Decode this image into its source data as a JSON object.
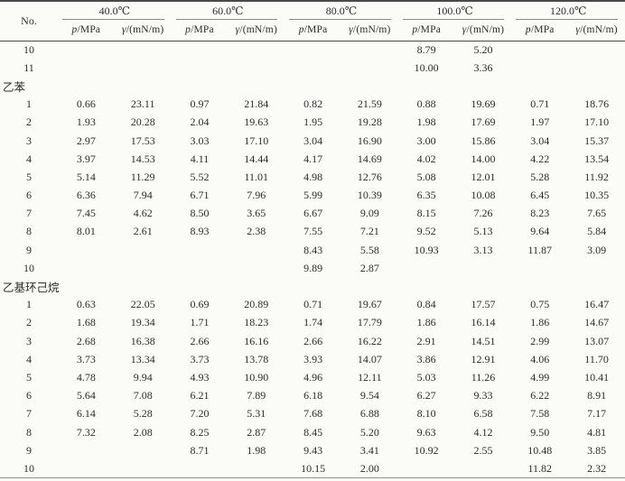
{
  "colors": {
    "page_background": "#fbfbf8",
    "text": "#2b2b2b",
    "rule_strong": "#4a4a4a",
    "rule_light": "#8a8a8a"
  },
  "table": {
    "corner_header": "No.",
    "temp_groups": [
      "40.0℃",
      "60.0℃",
      "80.0℃",
      "100.0℃",
      "120.0℃"
    ],
    "sub_headers": {
      "pressure": {
        "symbol": "p",
        "unit": "/MPa"
      },
      "tension": {
        "symbol": "γ",
        "unit": "/(mN/m)"
      }
    },
    "rows": [
      {
        "type": "data",
        "no": "10",
        "values": [
          "",
          "",
          "",
          "",
          "",
          "",
          "8.79",
          "5.20",
          "",
          ""
        ]
      },
      {
        "type": "data",
        "no": "11",
        "values": [
          "",
          "",
          "",
          "",
          "",
          "",
          "10.00",
          "3.36",
          "",
          ""
        ]
      },
      {
        "type": "section",
        "label": "乙苯"
      },
      {
        "type": "data",
        "no": "1",
        "values": [
          "0.66",
          "23.11",
          "0.97",
          "21.84",
          "0.82",
          "21.59",
          "0.88",
          "19.69",
          "0.71",
          "18.76"
        ]
      },
      {
        "type": "data",
        "no": "2",
        "values": [
          "1.93",
          "20.28",
          "2.04",
          "19.63",
          "1.95",
          "19.28",
          "1.98",
          "17.69",
          "1.97",
          "17.10"
        ]
      },
      {
        "type": "data",
        "no": "3",
        "values": [
          "2.97",
          "17.53",
          "3.03",
          "17.10",
          "3.04",
          "16.90",
          "3.00",
          "15.86",
          "3.04",
          "15.37"
        ]
      },
      {
        "type": "data",
        "no": "4",
        "values": [
          "3.97",
          "14.53",
          "4.11",
          "14.44",
          "4.17",
          "14.69",
          "4.02",
          "14.00",
          "4.22",
          "13.54"
        ]
      },
      {
        "type": "data",
        "no": "5",
        "values": [
          "5.14",
          "11.29",
          "5.52",
          "11.01",
          "4.98",
          "12.76",
          "5.08",
          "12.01",
          "5.28",
          "11.92"
        ]
      },
      {
        "type": "data",
        "no": "6",
        "values": [
          "6.36",
          "7.94",
          "6.71",
          "7.96",
          "5.99",
          "10.39",
          "6.35",
          "10.08",
          "6.45",
          "10.35"
        ]
      },
      {
        "type": "data",
        "no": "7",
        "values": [
          "7.45",
          "4.62",
          "8.50",
          "3.65",
          "6.67",
          "9.09",
          "8.15",
          "7.26",
          "8.23",
          "7.65"
        ]
      },
      {
        "type": "data",
        "no": "8",
        "values": [
          "8.01",
          "2.61",
          "8.93",
          "2.38",
          "7.55",
          "7.21",
          "9.52",
          "5.13",
          "9.64",
          "5.84"
        ]
      },
      {
        "type": "data",
        "no": "9",
        "values": [
          "",
          "",
          "",
          "",
          "8.43",
          "5.58",
          "10.93",
          "3.13",
          "11.87",
          "3.09"
        ]
      },
      {
        "type": "data",
        "no": "10",
        "values": [
          "",
          "",
          "",
          "",
          "9.89",
          "2.87",
          "",
          "",
          "",
          ""
        ]
      },
      {
        "type": "section",
        "label": "乙基环己烷"
      },
      {
        "type": "data",
        "no": "1",
        "values": [
          "0.63",
          "22.05",
          "0.69",
          "20.89",
          "0.71",
          "19.67",
          "0.84",
          "17.57",
          "0.75",
          "16.47"
        ]
      },
      {
        "type": "data",
        "no": "2",
        "values": [
          "1.68",
          "19.34",
          "1.71",
          "18.23",
          "1.74",
          "17.79",
          "1.86",
          "16.14",
          "1.86",
          "14.67"
        ]
      },
      {
        "type": "data",
        "no": "3",
        "values": [
          "2.68",
          "16.38",
          "2.66",
          "16.16",
          "2.66",
          "16.22",
          "2.91",
          "14.51",
          "2.99",
          "13.07"
        ]
      },
      {
        "type": "data",
        "no": "4",
        "values": [
          "3.73",
          "13.34",
          "3.73",
          "13.78",
          "3.93",
          "14.07",
          "3.86",
          "12.91",
          "4.06",
          "11.70"
        ]
      },
      {
        "type": "data",
        "no": "5",
        "values": [
          "4.78",
          "9.94",
          "4.93",
          "10.90",
          "4.96",
          "12.11",
          "5.03",
          "11.26",
          "4.99",
          "10.41"
        ]
      },
      {
        "type": "data",
        "no": "6",
        "values": [
          "5.64",
          "7.08",
          "6.21",
          "7.89",
          "6.18",
          "9.54",
          "6.27",
          "9.33",
          "6.22",
          "8.91"
        ]
      },
      {
        "type": "data",
        "no": "7",
        "values": [
          "6.14",
          "5.28",
          "7.20",
          "5.31",
          "7.68",
          "6.88",
          "8.10",
          "6.58",
          "7.58",
          "7.17"
        ]
      },
      {
        "type": "data",
        "no": "8",
        "values": [
          "7.32",
          "2.08",
          "8.25",
          "2.87",
          "8.45",
          "5.20",
          "9.63",
          "4.12",
          "9.50",
          "4.81"
        ]
      },
      {
        "type": "data",
        "no": "9",
        "values": [
          "",
          "",
          "8.71",
          "1.98",
          "9.43",
          "3.41",
          "10.92",
          "2.55",
          "10.48",
          "3.85"
        ]
      },
      {
        "type": "data",
        "no": "10",
        "values": [
          "",
          "",
          "",
          "",
          "10.15",
          "2.00",
          "",
          "",
          "11.82",
          "2.32"
        ]
      }
    ]
  }
}
